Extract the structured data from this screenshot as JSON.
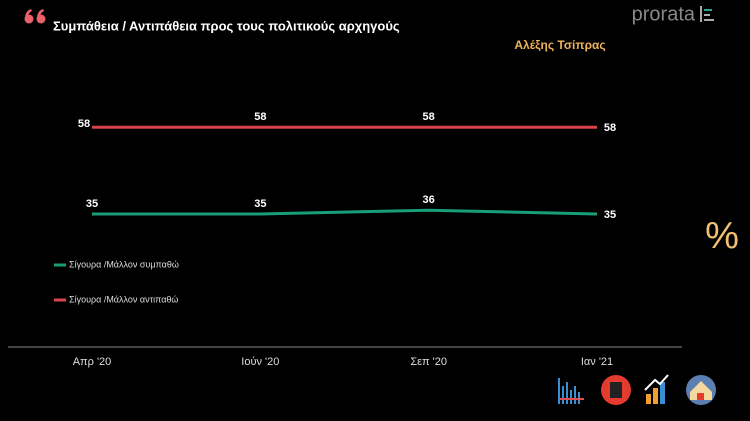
{
  "chart_data": {
    "type": "line",
    "title": "Συμπάθεια / Αντιπάθεια προς τους πολιτικούς αρχηγούς",
    "subtitle": "Αλέξης Τσίπρας",
    "logo": "prorata",
    "side_icon": "%",
    "categories": [
      "Απρ '20",
      "Ιούν '20",
      "Σεπ '20",
      "Ιαν '21"
    ],
    "series": [
      {
        "name": "Σίγουρα /Μάλλον συμπαθώ",
        "color": "#1a9e77",
        "values": [
          35,
          35,
          36,
          35
        ]
      },
      {
        "name": "Σίγουρα /Μάλλον αντιπαθώ",
        "color": "#d9434b",
        "values": [
          58,
          58,
          58,
          58
        ]
      }
    ],
    "ylim": [
      0,
      70
    ]
  }
}
